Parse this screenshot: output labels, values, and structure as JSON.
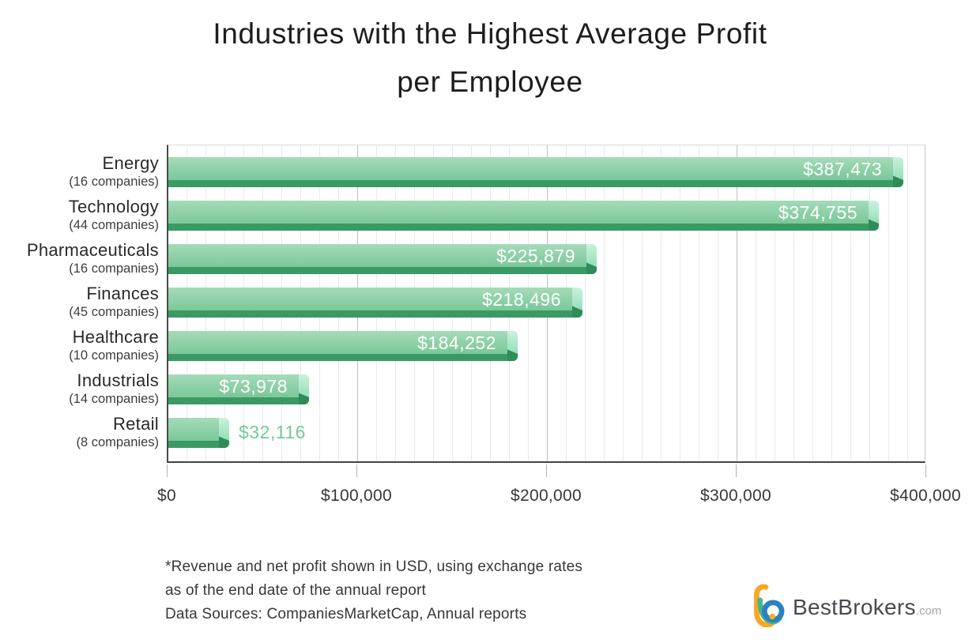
{
  "title": {
    "line1": "Industries with the Highest Average Profit",
    "line2": "per Employee"
  },
  "chart_data": {
    "type": "bar",
    "orientation": "horizontal",
    "title": "Industries with the Highest Average Profit per Employee",
    "categories": [
      "Energy",
      "Technology",
      "Pharmaceuticals",
      "Finances",
      "Healthcare",
      "Industrials",
      "Retail"
    ],
    "category_sublabels": [
      "(16 companies)",
      "(44 companies)",
      "(16 companies)",
      "(45 companies)",
      "(10 companies)",
      "(14 companies)",
      "(8 companies)"
    ],
    "values": [
      387473,
      374755,
      225879,
      218496,
      184252,
      73978,
      32116
    ],
    "value_labels": [
      "$387,473",
      "$374,755",
      "$225,879",
      "$218,496",
      "$184,252",
      "$73,978",
      "$32,116"
    ],
    "xlabel": "",
    "ylabel": "",
    "xlim": [
      0,
      400000
    ],
    "x_ticks": [
      "$0",
      "$100,000",
      "$200,000",
      "$300,000",
      "$400,000"
    ],
    "x_tick_values": [
      0,
      100000,
      200000,
      300000,
      400000
    ],
    "minor_grid_step": 10000,
    "grid": true,
    "legend": false,
    "bar_color_top": "#a4dcb9",
    "bar_color_bottom": "#6ec291",
    "bar_stripe_color": "#3a9a64",
    "bar_cap_color": "#c9f2dc",
    "value_label_color_inside": "#ffffff",
    "value_label_color_outside": "#74ca99"
  },
  "footnotes": {
    "line1": "*Revenue and net profit shown in USD, using exchange rates",
    "line2": " as of the end date of the annual report",
    "line3": "Data Sources: CompaniesMarketCap, Annual reports"
  },
  "logo": {
    "brand": "BestBrokers",
    "tld": ".com",
    "icon": "bestbrokers-b-logo",
    "colors": {
      "orange": "#f7a823",
      "green": "#45b78e",
      "blue": "#2f7fc1",
      "dot": "#f2b21c"
    }
  }
}
